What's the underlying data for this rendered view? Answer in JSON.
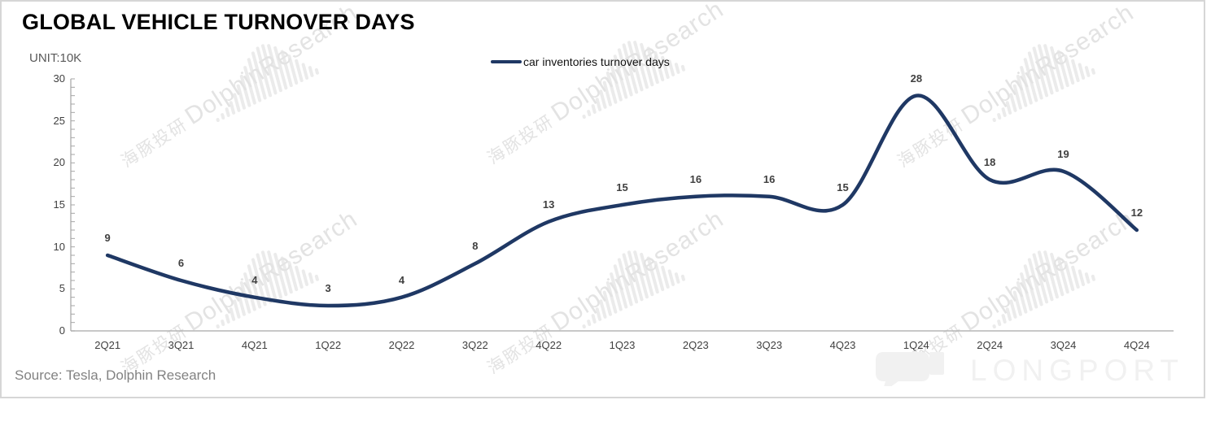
{
  "title": "GLOBAL VEHICLE TURNOVER DAYS",
  "unit_label": "UNIT:10K",
  "legend": {
    "label": "car inventories turnover days",
    "line_color": "#1f3864"
  },
  "source": "Source: Tesla, Dolphin Research",
  "watermark": {
    "cn": "海豚投研",
    "en": "DolphinResearch"
  },
  "brand": {
    "longport": "LONGPORT"
  },
  "colors": {
    "line": "#1f3864",
    "data_label": "#404040",
    "axis": "#b5b5b5",
    "tick": "#a6a6a6",
    "unit_text": "#595959",
    "source_text": "#828282",
    "watermark": "#e3e3e3",
    "watermark_bars": "#ebebeb",
    "longport": "#f1f1f1"
  },
  "chart_data": {
    "type": "line",
    "title": "GLOBAL VEHICLE TURNOVER DAYS",
    "unit": "UNIT:10K",
    "categories": [
      "2Q21",
      "3Q21",
      "4Q21",
      "1Q22",
      "2Q22",
      "3Q22",
      "4Q22",
      "1Q23",
      "2Q23",
      "3Q23",
      "4Q23",
      "1Q24",
      "2Q24",
      "3Q24",
      "4Q24"
    ],
    "series": [
      {
        "name": "car inventories turnover days",
        "values": [
          9,
          6,
          4,
          3,
          4,
          8,
          13,
          15,
          16,
          16,
          15,
          28,
          18,
          19,
          12
        ]
      }
    ],
    "xlabel": "",
    "ylabel": "UNIT:10K",
    "ylim": [
      0,
      30
    ],
    "yticks": [
      0,
      5,
      10,
      15,
      20,
      25,
      30
    ],
    "minor_tick_step": 1,
    "grid": false,
    "smooth": true,
    "data_labels": true,
    "legend_position": "top-center",
    "line_color": "#1f3864"
  }
}
